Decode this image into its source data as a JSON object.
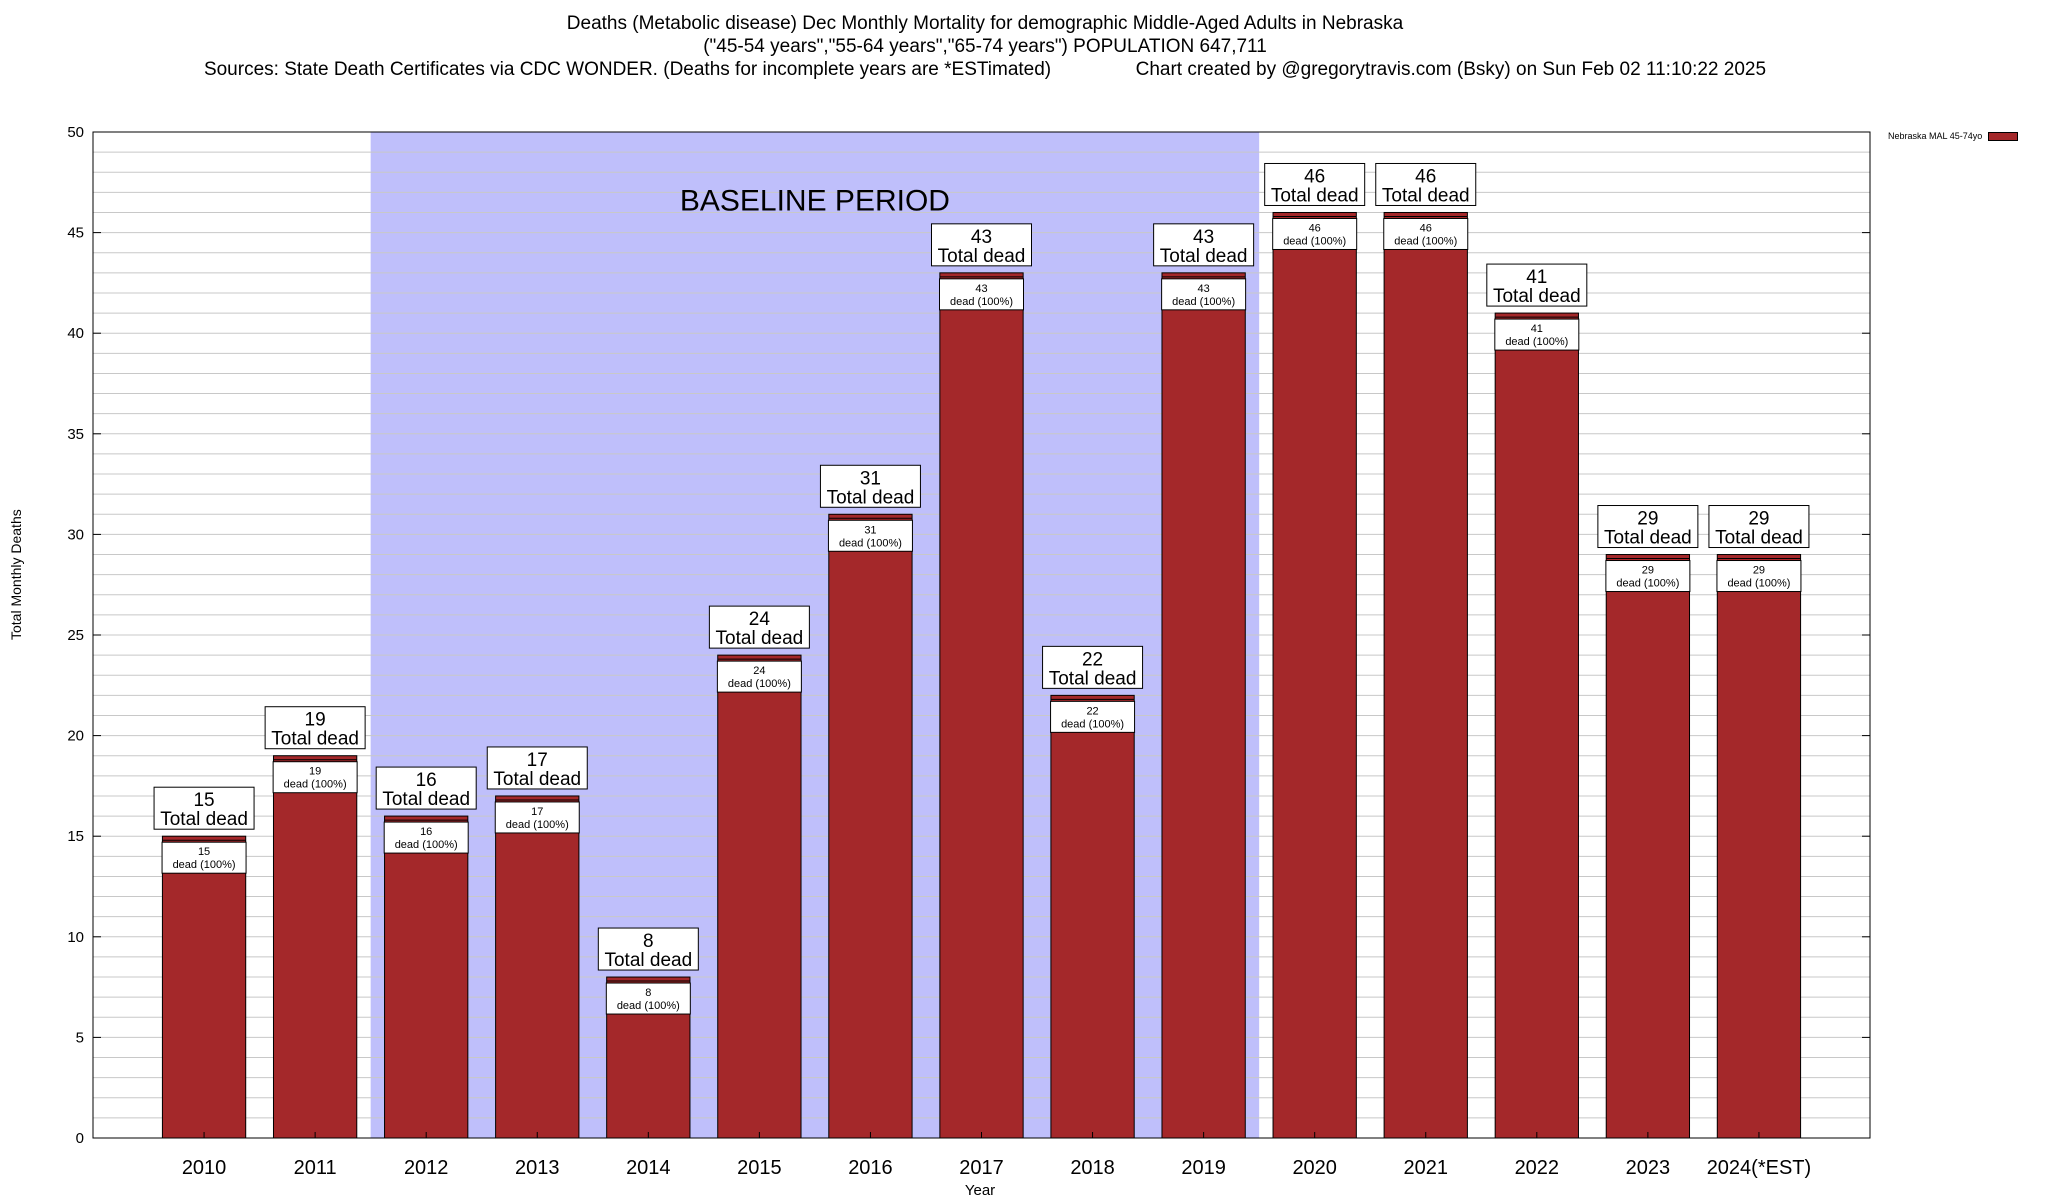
{
  "title": {
    "line1": "Deaths (Metabolic disease) Dec Monthly Mortality for demographic Middle-Aged Adults in Nebraska",
    "line2": "(\"45-54 years\",\"55-64 years\",\"65-74 years\") POPULATION 647,711",
    "line3_left": "Sources: State Death Certificates via CDC WONDER. (Deaths for incomplete years are *ESTimated)",
    "line3_right": "Chart created by @gregorytravis.com (Bsky) on Sun Feb 02 11:10:22 2025"
  },
  "colors": {
    "bar": "#a4282a",
    "baseline_band": "#bfbffb",
    "grid": "#c8c8c8"
  },
  "chart_data": {
    "type": "bar",
    "categories": [
      "2010",
      "2011",
      "2012",
      "2013",
      "2014",
      "2015",
      "2016",
      "2017",
      "2018",
      "2019",
      "2020",
      "2021",
      "2022",
      "2023",
      "2024(*EST)"
    ],
    "series": [
      {
        "name": "Nebraska MAL 45-74yo",
        "values": [
          15,
          19,
          16,
          17,
          8,
          24,
          31,
          43,
          22,
          43,
          46,
          46,
          41,
          29,
          29
        ]
      }
    ],
    "xlabel": "Year",
    "ylabel": "Total Monthly Deaths",
    "ylim": [
      0,
      50
    ],
    "yticks": [
      0,
      5,
      10,
      15,
      20,
      25,
      30,
      35,
      40,
      45,
      50
    ],
    "grid": true,
    "legend_position": "top-right",
    "annotation": {
      "text": "BASELINE PERIOD",
      "from_category": "2012",
      "to_category": "2019"
    },
    "total_label_suffix": "Total dead",
    "inner_label_suffix": "dead (100%)"
  }
}
